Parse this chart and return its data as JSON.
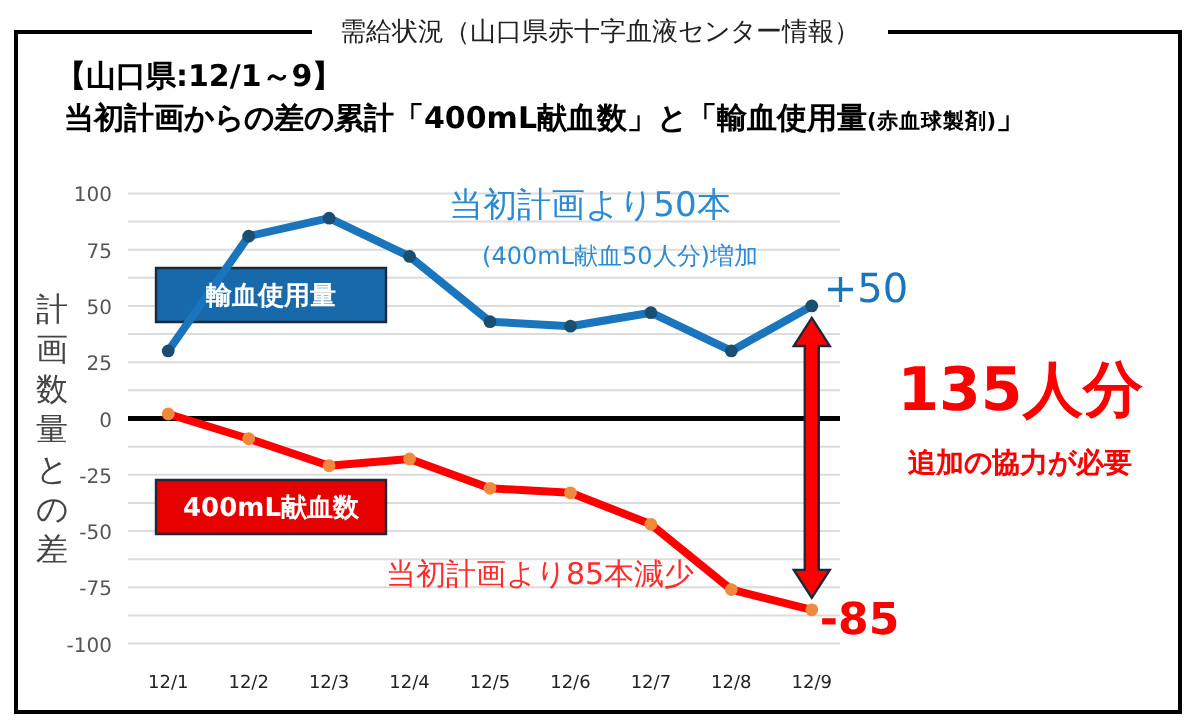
{
  "chart_data": {
    "type": "line",
    "title": "需給状況（山口県赤十字血液センター情報）",
    "subtitle": "【山口県:12/1～9】",
    "ylabel": "計画数量との差",
    "categories": [
      "12/1",
      "12/2",
      "12/3",
      "12/4",
      "12/5",
      "12/6",
      "12/7",
      "12/8",
      "12/9"
    ],
    "series": [
      {
        "name": "輸血使用量",
        "color": "#1a75bc",
        "values": [
          30,
          81,
          89,
          72,
          43,
          41,
          47,
          30,
          50
        ]
      },
      {
        "name": "400mL献血数",
        "color": "#ff0000",
        "values": [
          2,
          -9,
          -21,
          -18,
          -31,
          -33,
          -47,
          -76,
          -85
        ]
      }
    ],
    "ylim": [
      -100,
      100
    ],
    "yticks": [
      -100,
      {
        "value": -87.5,
        "label": null
      },
      -75,
      {
        "value": -62.5,
        "label": null
      },
      -50,
      {
        "value": -37.5,
        "label": null
      },
      -25,
      {
        "value": -12.5,
        "label": null
      },
      0,
      {
        "value": 12.5,
        "label": null
      },
      25,
      {
        "value": 37.5,
        "label": null
      },
      50,
      {
        "value": 62.5,
        "label": null
      },
      75,
      {
        "value": 87.5,
        "label": null
      },
      100
    ],
    "grid": "y",
    "legend": false,
    "marker": "circle",
    "line_style": "solid",
    "ref_lines": [
      {
        "axis": "y",
        "value": 0,
        "color": "#000000"
      }
    ],
    "annotations": [
      "当初計画からの差の累計「400mL献血数」と「輸血使用量$_{(赤血球製剤)}$」",
      "当初計画より50本",
      "(400mL献血50人分)増加",
      {
        "text": "+50",
        "x": "12/9",
        "y": 50
      },
      {
        "text": "-85",
        "x": "12/9",
        "y": -85
      },
      "135人分",
      "追加の協力が必要",
      "当初計画より85本減少"
    ]
  }
}
